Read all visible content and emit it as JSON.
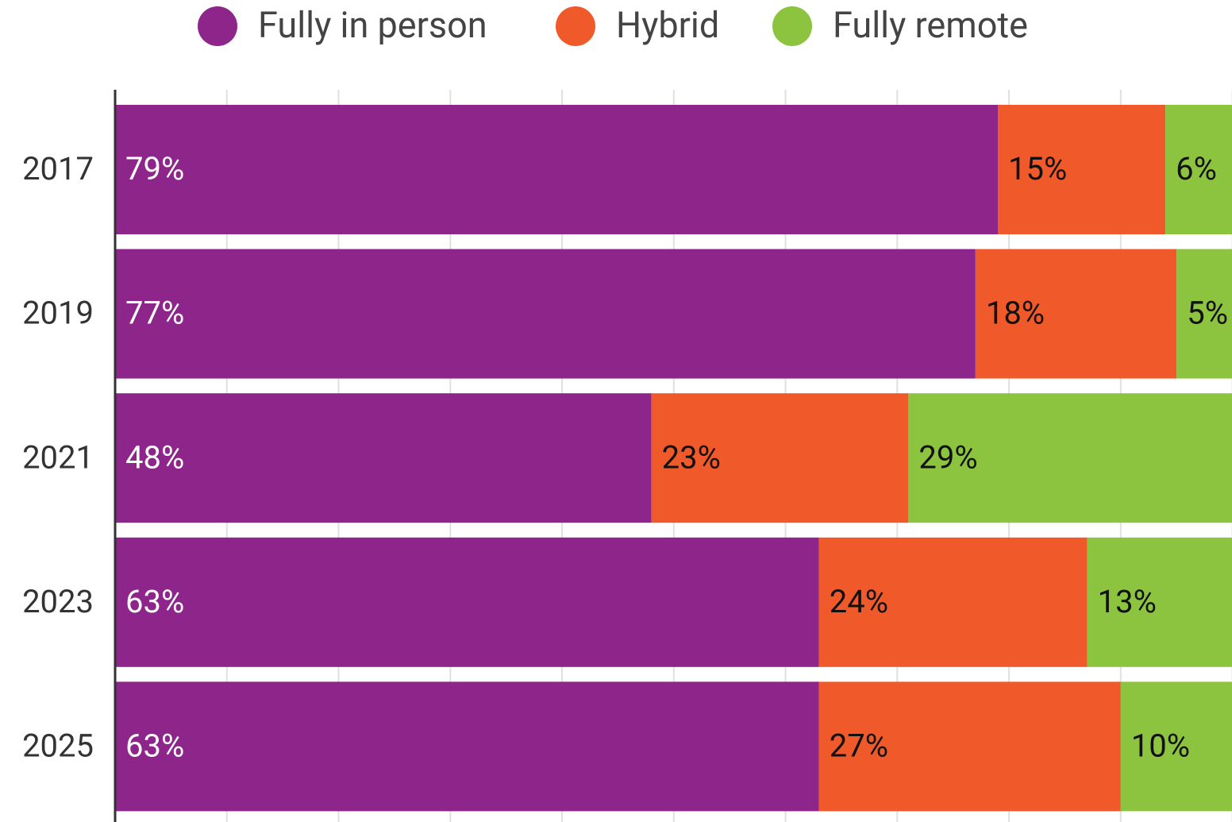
{
  "chart_data": {
    "type": "stacked-bar-horizontal",
    "categories": [
      "2017",
      "2019",
      "2021",
      "2023",
      "2025"
    ],
    "series": [
      {
        "name": "Fully in person",
        "color": "#8e258b",
        "values": [
          79,
          77,
          48,
          63,
          63
        ],
        "value_labels": [
          "79%",
          "77%",
          "48%",
          "63%",
          "63%"
        ]
      },
      {
        "name": "Hybrid",
        "color": "#f05a2a",
        "values": [
          15,
          18,
          23,
          24,
          27
        ],
        "value_labels": [
          "15%",
          "18%",
          "23%",
          "24%",
          "27%"
        ]
      },
      {
        "name": "Fully remote",
        "color": "#8cc43f",
        "values": [
          6,
          5,
          29,
          13,
          10
        ],
        "value_labels": [
          "6%",
          "5%",
          "29%",
          "13%",
          "10%"
        ]
      }
    ],
    "xlim": [
      0,
      100
    ],
    "xticks": [
      0,
      10,
      20,
      30,
      40,
      50,
      60,
      70,
      80,
      90,
      100
    ],
    "grid": true
  }
}
